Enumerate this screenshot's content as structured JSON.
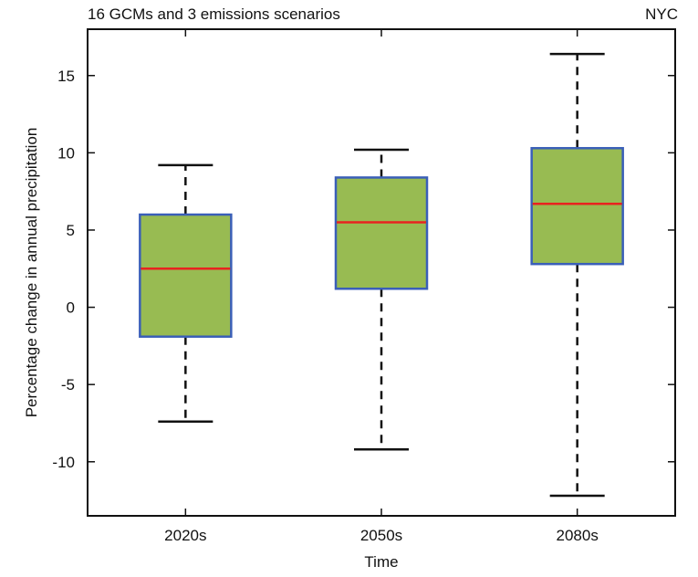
{
  "chart_data": {
    "type": "boxplot",
    "title_left": "16 GCMs and 3 emissions scenarios",
    "title_right": "NYC",
    "xlabel": "Time",
    "ylabel": "Percentage change in annual precipitation",
    "ylim": [
      -13.5,
      18
    ],
    "yticks": [
      -10,
      -5,
      0,
      5,
      10,
      15
    ],
    "categories": [
      "2020s",
      "2050s",
      "2080s"
    ],
    "boxes": [
      {
        "label": "2020s",
        "whisker_low": -7.4,
        "q1": -1.9,
        "median": 2.5,
        "q3": 6.0,
        "whisker_high": 9.2
      },
      {
        "label": "2050s",
        "whisker_low": -9.2,
        "q1": 1.2,
        "median": 5.5,
        "q3": 8.4,
        "whisker_high": 10.2
      },
      {
        "label": "2080s",
        "whisker_low": -12.2,
        "q1": 2.8,
        "median": 6.7,
        "q3": 10.3,
        "whisker_high": 16.4
      }
    ],
    "grid": false,
    "colors": {
      "box_fill": "#98bb52",
      "box_edge": "#3a5fb8",
      "median": "#e8231f",
      "whisker": "#111111"
    }
  }
}
